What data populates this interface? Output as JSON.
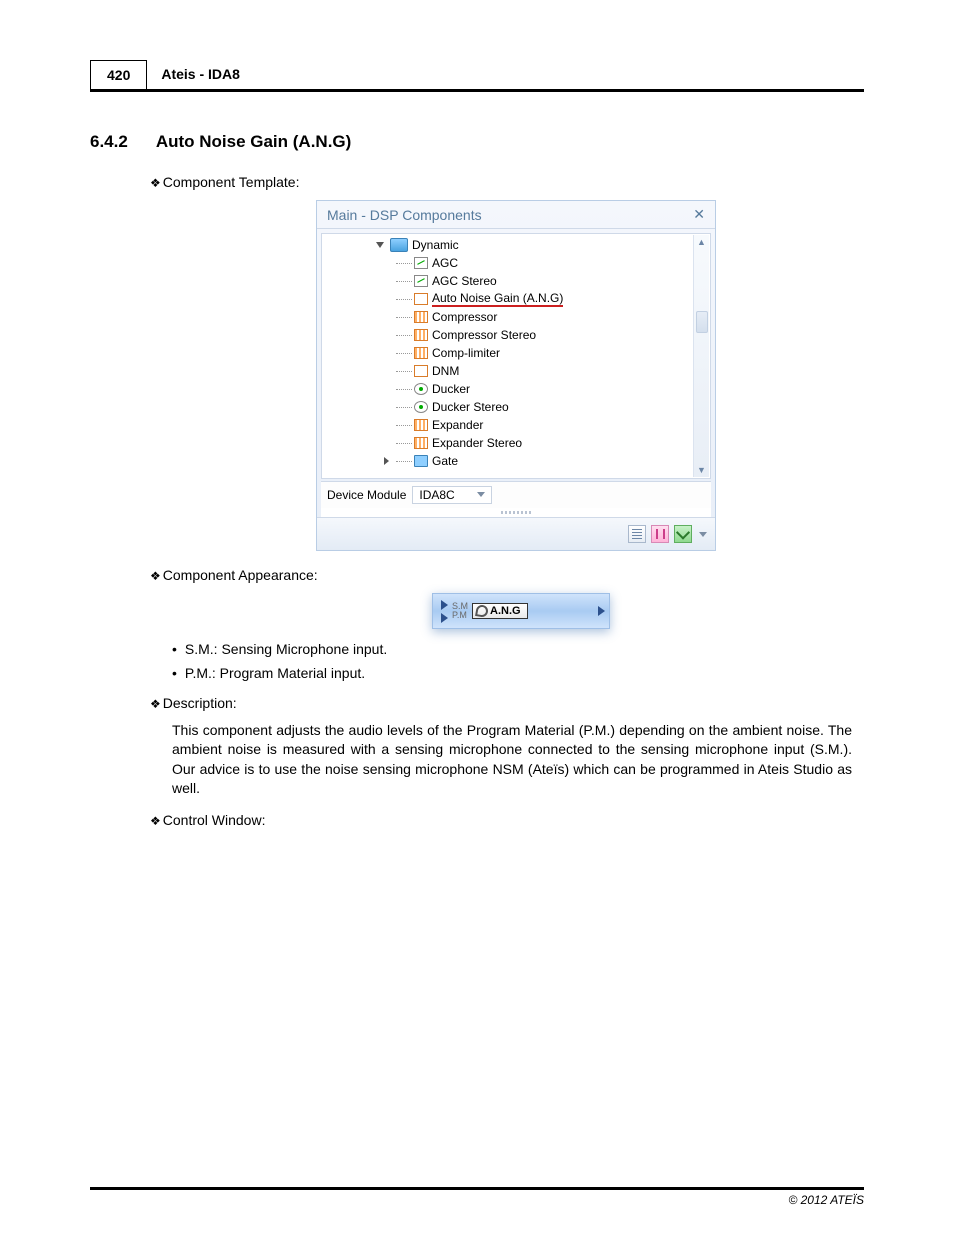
{
  "header": {
    "page_number": "420",
    "title": "Ateis - IDA8"
  },
  "section": {
    "number": "6.4.2",
    "title": "Auto Noise Gain (A.N.G)"
  },
  "headings": {
    "component_template": "Component Template:",
    "component_appearance": "Component Appearance:",
    "description": "Description:",
    "control_window": "Control Window:"
  },
  "dsp_panel": {
    "title": "Main - DSP Components",
    "root": "Dynamic",
    "items": [
      {
        "label": "AGC",
        "icon": "green"
      },
      {
        "label": "AGC Stereo",
        "icon": "green"
      },
      {
        "label": "Auto Noise Gain (A.N.G)",
        "icon": "dnm",
        "selected": true
      },
      {
        "label": "Compressor",
        "icon": "orange"
      },
      {
        "label": "Compressor Stereo",
        "icon": "orange"
      },
      {
        "label": "Comp-limiter",
        "icon": "orange"
      },
      {
        "label": "DNM",
        "icon": "dnm"
      },
      {
        "label": "Ducker",
        "icon": "small-target"
      },
      {
        "label": "Ducker Stereo",
        "icon": "small-target"
      },
      {
        "label": "Expander",
        "icon": "orange"
      },
      {
        "label": "Expander Stereo",
        "icon": "orange"
      },
      {
        "label": "Gate",
        "icon": "gate",
        "last": true
      }
    ],
    "device_module_label": "Device Module",
    "device_module_value": "IDA8C"
  },
  "component_appearance": {
    "port_sm": "S.M",
    "port_pm": "P.M",
    "label": "A.N.G"
  },
  "bullets": {
    "sm": "S.M.: Sensing Microphone input.",
    "pm": "P.M.: Program Material input."
  },
  "description_text": "This component adjusts the audio levels of the Program Material (P.M.) depending on the ambient noise. The ambient noise is measured with a sensing microphone connected to the sensing microphone input (S.M.). Our advice is to use the noise sensing microphone NSM (Ateïs) which can be programmed in Ateis Studio as well.",
  "footer": {
    "copyright": "© 2012 ATEÏS"
  },
  "colors": {
    "panel_border": "#b9cde5",
    "title_text": "#567a9c",
    "underline_red": "#cc1f1f",
    "appearance_bg_top": "#cfe3fb",
    "appearance_bg_mid": "#a9cbf2"
  }
}
